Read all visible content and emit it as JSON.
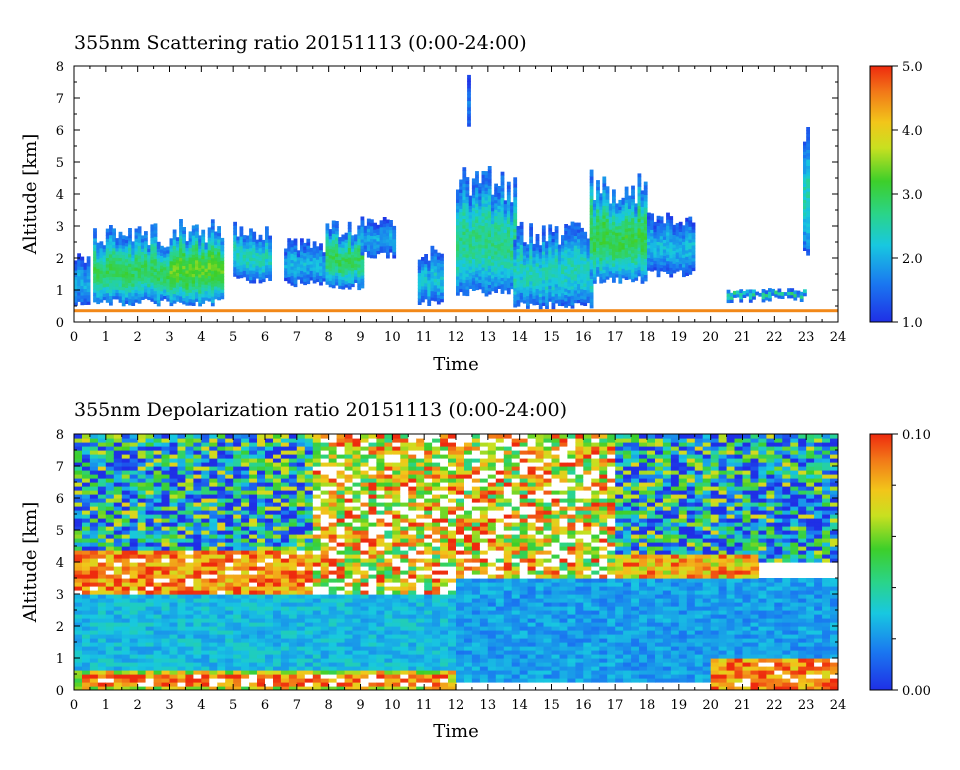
{
  "chart_data": [
    {
      "type": "heatmap",
      "title": "355nm Scattering ratio  20151113 (0:00-24:00)",
      "xlabel": "Time",
      "ylabel": "Altitude [km]",
      "xlim": [
        0,
        24
      ],
      "ylim": [
        0,
        8
      ],
      "xticks": [
        "0",
        "1",
        "2",
        "3",
        "4",
        "5",
        "6",
        "7",
        "8",
        "9",
        "10",
        "11",
        "12",
        "13",
        "14",
        "15",
        "16",
        "17",
        "18",
        "19",
        "20",
        "21",
        "22",
        "23",
        "24"
      ],
      "yticks": [
        "0",
        "1",
        "2",
        "3",
        "4",
        "5",
        "6",
        "7",
        "8"
      ],
      "colorbar": {
        "range": [
          1.0,
          5.0
        ],
        "ticks": [
          "1.0",
          "2.0",
          "3.0",
          "4.0",
          "5.0"
        ],
        "colormap": "rainbow (blue-cyan-green-yellow-red)"
      },
      "colors": {
        "low": "#1f2fe6",
        "high": "#ee2a0e"
      },
      "layers": [
        {
          "x": [
            0.0,
            0.5
          ],
          "base": 0.45,
          "top": 2.2,
          "value": 1.8
        },
        {
          "x": [
            0.6,
            3.0
          ],
          "base": 0.5,
          "top": 3.0,
          "value": 2.6
        },
        {
          "x": [
            3.0,
            4.6
          ],
          "base": 0.5,
          "top": 3.2,
          "value": 2.9
        },
        {
          "x": [
            5.0,
            6.1
          ],
          "base": 1.2,
          "top": 3.1,
          "value": 2.2
        },
        {
          "x": [
            6.6,
            7.8
          ],
          "base": 1.1,
          "top": 2.6,
          "value": 1.9
        },
        {
          "x": [
            7.9,
            9.0
          ],
          "base": 1.0,
          "top": 3.2,
          "value": 2.6
        },
        {
          "x": [
            9.0,
            10.0
          ],
          "base": 2.0,
          "top": 3.3,
          "value": 1.8
        },
        {
          "x": [
            10.8,
            11.5
          ],
          "base": 0.5,
          "top": 2.3,
          "value": 2.0
        },
        {
          "x": [
            12.0,
            13.8
          ],
          "base": 0.8,
          "top": 4.8,
          "value": 2.4
        },
        {
          "x": [
            13.8,
            16.2
          ],
          "base": 0.4,
          "top": 3.2,
          "value": 2.2
        },
        {
          "x": [
            16.2,
            18.0
          ],
          "base": 1.2,
          "top": 4.7,
          "value": 2.7
        },
        {
          "x": [
            18.0,
            19.5
          ],
          "base": 1.4,
          "top": 3.4,
          "value": 1.9
        },
        {
          "x": [
            20.5,
            23.0
          ],
          "base": 0.6,
          "top": 1.0,
          "value": 2.4
        },
        {
          "x": [
            22.9,
            23.1
          ],
          "base": 2.0,
          "top": 6.2,
          "value": 2.2
        },
        {
          "x": [
            12.35,
            12.45
          ],
          "base": 6.0,
          "top": 7.9,
          "value": 1.5
        }
      ],
      "surface_layer": {
        "altitude": 0.35,
        "value": 4.5
      }
    },
    {
      "type": "heatmap",
      "title": "355nm Depolarization ratio  20151113 (0:00-24:00)",
      "xlabel": "Time",
      "ylabel": "Altitude [km]",
      "xlim": [
        0,
        24
      ],
      "ylim": [
        0,
        8
      ],
      "xticks": [
        "0",
        "1",
        "2",
        "3",
        "4",
        "5",
        "6",
        "7",
        "8",
        "9",
        "10",
        "11",
        "12",
        "13",
        "14",
        "15",
        "16",
        "17",
        "18",
        "19",
        "20",
        "21",
        "22",
        "23",
        "24"
      ],
      "yticks": [
        "0",
        "1",
        "2",
        "3",
        "4",
        "5",
        "6",
        "7",
        "8"
      ],
      "colorbar": {
        "range": [
          0.0,
          0.1
        ],
        "ticks": [
          "0.00",
          "0.10"
        ],
        "colormap": "rainbow (blue-cyan-green-yellow-red)"
      },
      "regions": [
        {
          "x": [
            0,
            24
          ],
          "altitude": [
            4.0,
            8.0
          ],
          "value": 0.03,
          "texture": "noisy"
        },
        {
          "x": [
            7.5,
            17.0
          ],
          "altitude": [
            3.0,
            8.0
          ],
          "value": 0.085,
          "texture": "noisy"
        },
        {
          "x": [
            0,
            7.5
          ],
          "altitude": [
            3.0,
            4.4
          ],
          "value": 0.09,
          "texture": "layer"
        },
        {
          "x": [
            17.0,
            21.5
          ],
          "altitude": [
            3.5,
            4.3
          ],
          "value": 0.08,
          "texture": "layer"
        },
        {
          "x": [
            0,
            12.0
          ],
          "altitude": [
            0.6,
            3.0
          ],
          "value": 0.028,
          "texture": "smooth"
        },
        {
          "x": [
            12.0,
            24.0
          ],
          "altitude": [
            0.3,
            3.5
          ],
          "value": 0.022,
          "texture": "smooth"
        },
        {
          "x": [
            0,
            12.0
          ],
          "altitude": [
            0.0,
            0.6
          ],
          "value": 0.07,
          "texture": "layer"
        },
        {
          "x": [
            0.3,
            11.8
          ],
          "altitude": [
            0.15,
            0.45
          ],
          "value": 0.095,
          "texture": "layer"
        },
        {
          "x": [
            20.0,
            24.0
          ],
          "altitude": [
            0.0,
            1.0
          ],
          "value": 0.09,
          "texture": "layer"
        }
      ]
    }
  ]
}
